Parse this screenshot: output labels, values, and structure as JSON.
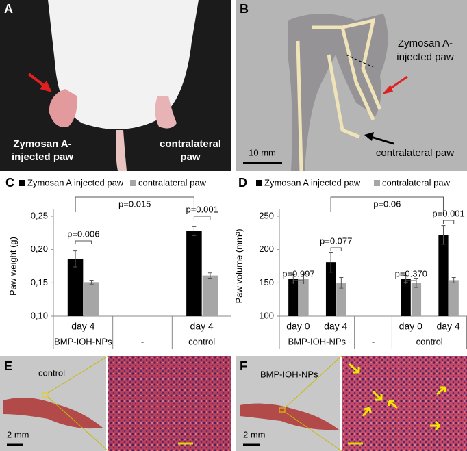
{
  "panels": {
    "A": {
      "label": "A",
      "injected": [
        "Zymosan A-",
        "injected paw"
      ],
      "contralateral": [
        "contralateral",
        "paw"
      ]
    },
    "B": {
      "label": "B",
      "injected": [
        "Zymosan A-",
        "injected paw"
      ],
      "contralateral": "contralateral paw",
      "scale": "10 mm"
    },
    "E": {
      "label": "E",
      "group": "control",
      "scale": "2 mm"
    },
    "F": {
      "label": "F",
      "group": "BMP-IOH-NPs",
      "scale": "2 mm"
    }
  },
  "chart_data": [
    {
      "type": "bar",
      "panel": "C",
      "y_label": "Paw weight (g)",
      "groups": [
        {
          "label": "BMP-IOH-NPs",
          "categories": [
            "day 4"
          ]
        },
        {
          "label": "-",
          "categories": [
            null
          ]
        },
        {
          "label": "control",
          "categories": [
            "day 4"
          ]
        }
      ],
      "series": [
        {
          "name": "Zymosan A injected paw",
          "color": "#000000",
          "values": [
            0.186,
            null,
            0.228
          ],
          "errors": [
            0.012,
            null,
            0.007
          ]
        },
        {
          "name": "contralateral paw",
          "color": "#a6a6a6",
          "values": [
            0.151,
            null,
            0.161
          ],
          "errors": [
            0.003,
            null,
            0.004
          ]
        }
      ],
      "ylim": [
        0.1,
        0.25
      ],
      "yticks": [
        {
          "value": 0.1,
          "label": "0,10"
        },
        {
          "value": 0.15,
          "label": "0,15"
        },
        {
          "value": 0.2,
          "label": "0,20"
        },
        {
          "value": 0.25,
          "label": "0,25"
        }
      ],
      "grid": false,
      "annotations": [
        "p=0.006",
        "p=0.001",
        "p=0.015"
      ]
    },
    {
      "type": "bar",
      "panel": "D",
      "y_label": "Paw volume (mm³)",
      "groups": [
        {
          "label": "BMP-IOH-NPs",
          "categories": [
            "day 0",
            "day 4"
          ]
        },
        {
          "label": "-",
          "categories": [
            null
          ]
        },
        {
          "label": "control",
          "categories": [
            "day 0",
            "day 4"
          ]
        }
      ],
      "series": [
        {
          "name": "Zymosan A injected paw",
          "color": "#000000",
          "values": [
            156,
            181,
            null,
            156,
            222
          ],
          "errors": [
            6,
            15,
            null,
            5,
            14
          ]
        },
        {
          "name": "contralateral paw",
          "color": "#a6a6a6",
          "values": [
            156,
            150,
            null,
            150,
            154
          ],
          "errors": [
            6,
            8,
            null,
            7,
            4
          ]
        }
      ],
      "ylim": [
        100,
        250
      ],
      "yticks": [
        100,
        150,
        200,
        250
      ],
      "grid": false,
      "annotations": [
        "p=0.997",
        "p=0.077",
        "p=0.370",
        "p=0.001",
        "p=0.06"
      ]
    }
  ]
}
